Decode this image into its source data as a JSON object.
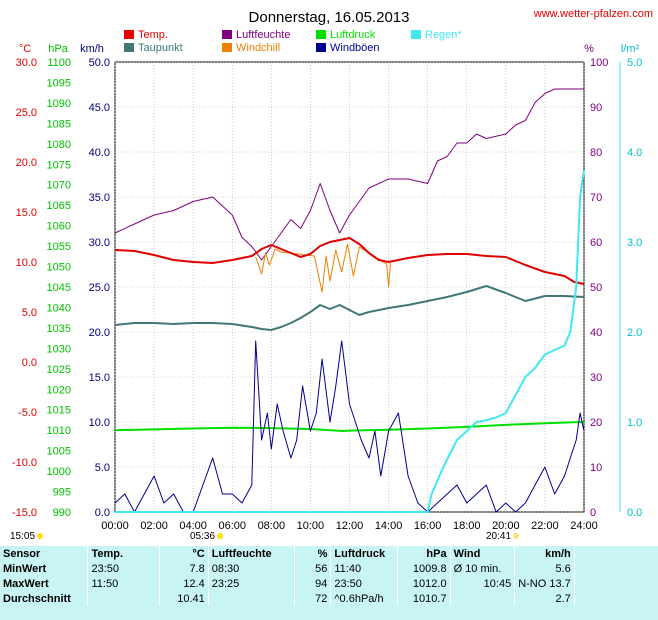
{
  "header": {
    "title": "Donnerstag, 16.05.2013",
    "website": "www.wetter-pfalzen.com"
  },
  "axis_units": {
    "temp": "°C",
    "pressure": "hPa",
    "wind": "km/h",
    "humidity": "%",
    "rain": "l/m²"
  },
  "legend": [
    {
      "label": "Temp.",
      "color": "#e00000"
    },
    {
      "label": "Luftfeuchte",
      "color": "#800080"
    },
    {
      "label": "Luftdruck",
      "color": "#00e000"
    },
    {
      "label": "Regen*",
      "color": "#40e8f0"
    },
    {
      "label": "Taupunkt",
      "color": "#407878"
    },
    {
      "label": "Windchill",
      "color": "#f08000"
    },
    {
      "label": "Windböen",
      "color": "#000090"
    }
  ],
  "sun": {
    "sunrise_left": "15:05",
    "sunrise_right": "05:36",
    "sunset": "20:41"
  },
  "chart_data": {
    "type": "line",
    "xlim": [
      0,
      24
    ],
    "x_tick_labels": [
      "00:00",
      "02:00",
      "04:00",
      "06:00",
      "08:00",
      "10:00",
      "12:00",
      "14:00",
      "16:00",
      "18:00",
      "20:00",
      "22:00",
      "24:00"
    ],
    "temp_axis": {
      "unit": "°C",
      "ylim": [
        -15,
        30
      ],
      "ticks": [
        "30.0",
        "25.0",
        "20.0",
        "15.0",
        "10.0",
        "5.0",
        "0.0",
        "-5.0",
        "-10.0",
        "-15.0"
      ],
      "color": "#e00000"
    },
    "pressure_axis": {
      "unit": "hPa",
      "ylim": [
        990,
        1100
      ],
      "ticks": [
        "1100",
        "1095",
        "1090",
        "1085",
        "1080",
        "1075",
        "1070",
        "1065",
        "1060",
        "1055",
        "1050",
        "1045",
        "1040",
        "1035",
        "1030",
        "1025",
        "1020",
        "1015",
        "1010",
        "1005",
        "1000",
        "995",
        "990"
      ],
      "color": "#00c000"
    },
    "wind_axis": {
      "unit": "km/h",
      "ylim": [
        0,
        50
      ],
      "ticks": [
        "50.0",
        "45.0",
        "40.0",
        "35.0",
        "30.0",
        "25.0",
        "20.0",
        "15.0",
        "10.0",
        "5.0",
        "0.0"
      ],
      "color": "#000080"
    },
    "humidity_axis": {
      "unit": "%",
      "ylim": [
        0,
        100
      ],
      "ticks": [
        "100",
        "90",
        "80",
        "70",
        "60",
        "50",
        "40",
        "30",
        "20",
        "10",
        "0"
      ],
      "color": "#800080"
    },
    "rain_axis": {
      "unit": "l/m²",
      "ylim": [
        0,
        5
      ],
      "ticks": [
        "5.0",
        "4.0",
        "3.0",
        "2.0",
        "1.0",
        "0.0"
      ],
      "color": "#00c0d0"
    },
    "series": [
      {
        "name": "Temp.",
        "axis": "temp",
        "color": "#e00000",
        "x": [
          0,
          1,
          2,
          3,
          4,
          5,
          6,
          7,
          7.5,
          8,
          8.5,
          9,
          9.5,
          10,
          10.5,
          11,
          11.5,
          12,
          12.5,
          13,
          13.5,
          14,
          15,
          16,
          17,
          18,
          19,
          20,
          21,
          22,
          23,
          23.5,
          24
        ],
        "y": [
          11.2,
          11.1,
          10.7,
          10.2,
          10.0,
          9.9,
          10.2,
          10.6,
          11.3,
          11.7,
          11.3,
          10.9,
          10.5,
          10.8,
          11.6,
          12.0,
          12.2,
          12.4,
          11.8,
          10.9,
          10.2,
          10.0,
          10.4,
          10.7,
          10.8,
          10.8,
          10.6,
          10.5,
          9.7,
          9.0,
          8.6,
          8.0,
          7.8
        ]
      },
      {
        "name": "Taupunkt",
        "axis": "temp",
        "color": "#407878",
        "x": [
          0,
          1,
          2,
          3,
          4,
          5,
          6,
          7,
          7.5,
          8,
          8.5,
          9,
          9.5,
          10,
          10.5,
          11,
          11.5,
          12,
          12.5,
          13,
          14,
          15,
          16,
          17,
          18,
          19,
          20,
          21,
          22,
          23,
          24
        ],
        "y": [
          3.7,
          3.9,
          3.9,
          3.8,
          3.9,
          3.9,
          3.8,
          3.5,
          3.3,
          3.2,
          3.5,
          3.9,
          4.4,
          5.0,
          5.7,
          5.3,
          5.7,
          5.2,
          4.7,
          5.0,
          5.4,
          5.7,
          6.1,
          6.5,
          7.0,
          7.6,
          6.9,
          6.1,
          6.6,
          6.6,
          6.5
        ]
      },
      {
        "name": "Windchill",
        "axis": "temp",
        "color": "#f08000",
        "x": [
          7.2,
          7.5,
          7.7,
          7.9,
          8.2,
          8.5,
          10.2,
          10.6,
          10.8,
          11.0,
          11.3,
          11.6,
          11.9,
          12.2,
          12.5,
          13.9,
          14.0,
          14.1
        ],
        "y": [
          10.5,
          8.8,
          10.9,
          9.7,
          11.3,
          11.0,
          10.6,
          7.0,
          10.6,
          8.1,
          11.2,
          9.0,
          11.8,
          8.6,
          11.5,
          9.8,
          7.5,
          9.9
        ]
      },
      {
        "name": "Luftfeuchte",
        "axis": "humidity",
        "color": "#800080",
        "x": [
          0,
          1,
          2,
          3,
          4,
          5,
          6,
          6.5,
          7,
          7.5,
          8,
          8.5,
          9,
          9.5,
          10,
          10.5,
          11,
          11.5,
          12,
          12.5,
          13,
          14,
          15,
          16,
          16.5,
          17,
          17.5,
          18,
          18.5,
          19,
          20,
          20.5,
          21,
          21.5,
          22,
          22.5,
          23,
          23.5,
          24
        ],
        "y": [
          62,
          64,
          66,
          67,
          69,
          70,
          66,
          61,
          59,
          56,
          59,
          62,
          65,
          63,
          67,
          73,
          67,
          62,
          66,
          69,
          72,
          74,
          74,
          73,
          78,
          79,
          82,
          82,
          84,
          83,
          84,
          86,
          87,
          91,
          93,
          94,
          94,
          94,
          94
        ]
      },
      {
        "name": "Luftdruck",
        "axis": "pressure",
        "color": "#00e000",
        "x": [
          0,
          2,
          4,
          6,
          8,
          10,
          11.67,
          12,
          14,
          16,
          18,
          20,
          22,
          23.83,
          24
        ],
        "y": [
          1010.0,
          1010.2,
          1010.4,
          1010.6,
          1010.5,
          1010.3,
          1009.8,
          1009.9,
          1010.1,
          1010.4,
          1010.8,
          1011.3,
          1011.7,
          1012.0,
          1011.9
        ]
      },
      {
        "name": "Regen*",
        "axis": "rain",
        "color": "#40e8f0",
        "x": [
          0,
          16,
          16.2,
          16.8,
          17.5,
          18,
          18.5,
          19,
          19.5,
          20,
          20.5,
          21,
          21.5,
          22,
          22.5,
          23,
          23.3,
          23.6,
          23.8,
          24
        ],
        "y": [
          0,
          0,
          0.2,
          0.5,
          0.8,
          0.9,
          1.0,
          1.02,
          1.05,
          1.1,
          1.3,
          1.5,
          1.6,
          1.75,
          1.8,
          1.85,
          2.0,
          2.5,
          3.5,
          3.8
        ]
      },
      {
        "name": "Windböen",
        "axis": "wind",
        "color": "#000090",
        "x": [
          0,
          0.5,
          1,
          1.5,
          2,
          2.5,
          3,
          3.5,
          4,
          4.5,
          5,
          5.5,
          6,
          6.5,
          7,
          7.2,
          7.5,
          7.8,
          8,
          8.3,
          8.6,
          9,
          9.3,
          9.6,
          10,
          10.3,
          10.6,
          11,
          11.3,
          11.6,
          12,
          12.3,
          12.6,
          13,
          13.3,
          13.6,
          14,
          14.5,
          15,
          15.5,
          16,
          16.5,
          17,
          17.5,
          18,
          18.5,
          19,
          19.5,
          20,
          20.5,
          21,
          21.5,
          22,
          22.5,
          23,
          23.3,
          23.6,
          23.8,
          24
        ],
        "y": [
          1,
          2,
          0,
          2,
          4,
          1,
          2,
          0,
          0,
          3,
          6,
          2,
          2,
          1,
          3,
          19,
          8,
          11,
          7,
          12,
          9,
          6,
          8,
          14,
          9,
          11,
          17,
          10,
          14,
          19,
          12,
          10,
          8,
          6,
          9,
          4,
          9,
          11,
          4,
          1,
          0,
          1,
          2,
          3,
          1,
          2,
          3,
          0,
          1,
          0,
          1,
          3,
          5,
          2,
          4,
          6,
          8,
          11,
          9
        ]
      }
    ]
  },
  "stats": {
    "headers": {
      "sensor": "Sensor",
      "temp": "Temp.",
      "temp_unit": "°C",
      "humidity": "Luftfeuchte",
      "humidity_unit": "%",
      "pressure": "Luftdruck",
      "pressure_unit": "hPa",
      "wind": "Wind",
      "wind_unit": "km/h"
    },
    "rows": [
      {
        "label": "MinWert",
        "temp_time": "23:50",
        "temp_val": "7.8",
        "hum_time": "08:30",
        "hum_val": "56",
        "press_time": "11:40",
        "press_val": "1009.8",
        "wind_label": "Ø 10 min.",
        "wind_val": "5.6"
      },
      {
        "label": "MaxWert",
        "temp_time": "11:50",
        "temp_val": "12.4",
        "hum_time": "23:25",
        "hum_val": "94",
        "press_time": "23:50",
        "press_val": "1012.0",
        "wind_label": "10:45",
        "wind_val": "N-NO 13.7"
      },
      {
        "label": "Durchschnitt",
        "temp_time": "",
        "temp_val": "10.41",
        "hum_time": "",
        "hum_val": "72",
        "press_time": "^0.6hPa/h",
        "press_val": "1010.7",
        "wind_label": "",
        "wind_val": "2.7"
      }
    ]
  }
}
